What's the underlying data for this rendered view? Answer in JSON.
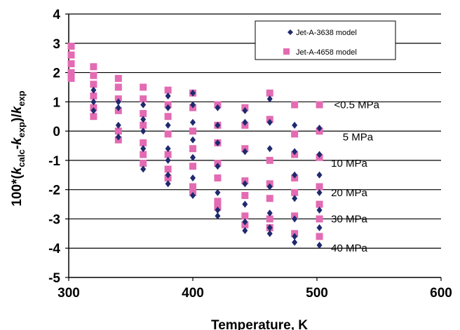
{
  "chart_data": {
    "type": "scatter",
    "xlabel": "Temperature, K",
    "ylabel_parts": {
      "prefix": "100*(",
      "k1": "k",
      "k1_sub": "calc",
      "minus": "-",
      "k2": "k",
      "k2_sub": "exp",
      "close": ")/",
      "k3": "k",
      "k3_sub": "exp"
    },
    "xlim": [
      300,
      600
    ],
    "ylim": [
      -5,
      4
    ],
    "x_ticks": [
      "300",
      "400",
      "500",
      "600"
    ],
    "y_ticks": [
      "4",
      "3",
      "2",
      "1",
      "0",
      "-1",
      "-2",
      "-3",
      "-4",
      "-5"
    ],
    "grid": "horizontal",
    "legend_position": "top-right",
    "series": [
      {
        "name": "Jet-A-3638 model",
        "marker": "diamond",
        "color": "#1f2a6e",
        "points": [
          [
            320,
            1.4
          ],
          [
            320,
            1.0
          ],
          [
            320,
            0.7
          ],
          [
            340,
            1.0
          ],
          [
            340,
            0.8
          ],
          [
            340,
            0.2
          ],
          [
            340,
            -0.2
          ],
          [
            360,
            0.9
          ],
          [
            360,
            0.4
          ],
          [
            360,
            0.0
          ],
          [
            360,
            -0.6
          ],
          [
            360,
            -1.3
          ],
          [
            380,
            1.2
          ],
          [
            380,
            0.8
          ],
          [
            380,
            0.2
          ],
          [
            380,
            -0.6
          ],
          [
            380,
            -1.0
          ],
          [
            380,
            -1.5
          ],
          [
            380,
            -1.8
          ],
          [
            400,
            1.3
          ],
          [
            400,
            0.9
          ],
          [
            400,
            0.3
          ],
          [
            400,
            -0.3
          ],
          [
            400,
            -0.9
          ],
          [
            400,
            -1.6
          ],
          [
            400,
            -2.2
          ],
          [
            420,
            0.8
          ],
          [
            420,
            0.2
          ],
          [
            420,
            -0.4
          ],
          [
            420,
            -1.2
          ],
          [
            420,
            -2.1
          ],
          [
            420,
            -2.7
          ],
          [
            420,
            -2.9
          ],
          [
            442,
            0.7
          ],
          [
            442,
            0.3
          ],
          [
            442,
            -0.7
          ],
          [
            442,
            -1.8
          ],
          [
            442,
            -2.5
          ],
          [
            442,
            -3.1
          ],
          [
            442,
            -3.4
          ],
          [
            462,
            1.1
          ],
          [
            462,
            0.3
          ],
          [
            462,
            -0.6
          ],
          [
            462,
            -1.9
          ],
          [
            462,
            -2.8
          ],
          [
            462,
            -3.3
          ],
          [
            462,
            -3.5
          ],
          [
            482,
            0.2
          ],
          [
            482,
            -0.7
          ],
          [
            482,
            -1.5
          ],
          [
            482,
            -2.3
          ],
          [
            482,
            -3.0
          ],
          [
            482,
            -3.6
          ],
          [
            482,
            -3.8
          ],
          [
            502,
            0.1
          ],
          [
            502,
            -0.8
          ],
          [
            502,
            -1.5
          ],
          [
            502,
            -2.1
          ],
          [
            502,
            -2.7
          ],
          [
            502,
            -3.3
          ],
          [
            502,
            -3.9
          ]
        ]
      },
      {
        "name": "Jet-A-4658 model",
        "marker": "square",
        "color": "#e36bb3",
        "points": [
          [
            302,
            2.9
          ],
          [
            302,
            2.6
          ],
          [
            302,
            2.3
          ],
          [
            302,
            2.0
          ],
          [
            302,
            1.8
          ],
          [
            320,
            2.2
          ],
          [
            320,
            1.9
          ],
          [
            320,
            1.6
          ],
          [
            320,
            1.2
          ],
          [
            320,
            0.8
          ],
          [
            320,
            0.5
          ],
          [
            340,
            1.8
          ],
          [
            340,
            1.5
          ],
          [
            340,
            1.1
          ],
          [
            340,
            0.7
          ],
          [
            340,
            0.0
          ],
          [
            340,
            -0.3
          ],
          [
            360,
            1.5
          ],
          [
            360,
            1.1
          ],
          [
            360,
            0.6
          ],
          [
            360,
            0.2
          ],
          [
            360,
            -0.4
          ],
          [
            360,
            -0.8
          ],
          [
            360,
            -1.1
          ],
          [
            380,
            1.4
          ],
          [
            380,
            0.9
          ],
          [
            380,
            0.5
          ],
          [
            380,
            -0.1
          ],
          [
            380,
            -0.8
          ],
          [
            380,
            -1.3
          ],
          [
            380,
            -1.6
          ],
          [
            400,
            1.3
          ],
          [
            400,
            0.8
          ],
          [
            400,
            0.0
          ],
          [
            400,
            -0.6
          ],
          [
            400,
            -1.2
          ],
          [
            400,
            -1.9
          ],
          [
            400,
            -2.1
          ],
          [
            420,
            0.9
          ],
          [
            420,
            0.2
          ],
          [
            420,
            -0.4
          ],
          [
            420,
            -1.1
          ],
          [
            420,
            -1.6
          ],
          [
            420,
            -2.4
          ],
          [
            420,
            -2.6
          ],
          [
            442,
            0.8
          ],
          [
            442,
            0.2
          ],
          [
            442,
            -0.6
          ],
          [
            442,
            -1.7
          ],
          [
            442,
            -2.2
          ],
          [
            442,
            -2.9
          ],
          [
            442,
            -3.2
          ],
          [
            462,
            1.3
          ],
          [
            462,
            0.4
          ],
          [
            462,
            -1.0
          ],
          [
            462,
            -1.8
          ],
          [
            462,
            -2.3
          ],
          [
            462,
            -3.0
          ],
          [
            462,
            -3.3
          ],
          [
            482,
            0.9
          ],
          [
            482,
            -0.1
          ],
          [
            482,
            -0.8
          ],
          [
            482,
            -1.6
          ],
          [
            482,
            -2.1
          ],
          [
            482,
            -2.9
          ],
          [
            482,
            -3.5
          ],
          [
            502,
            0.9
          ],
          [
            502,
            0.0
          ],
          [
            502,
            -0.9
          ],
          [
            502,
            -1.9
          ],
          [
            502,
            -2.5
          ],
          [
            502,
            -3.0
          ],
          [
            502,
            -3.6
          ]
        ]
      }
    ],
    "annotations": [
      {
        "text": "<0.5 MPa",
        "x": 532,
        "y": 0.9
      },
      {
        "text": "5 MPa",
        "x": 533,
        "y": -0.2
      },
      {
        "text": "10 MPa",
        "x": 526,
        "y": -1.1
      },
      {
        "text": "20 MPa",
        "x": 526,
        "y": -2.1
      },
      {
        "text": "30 MPa",
        "x": 526,
        "y": -3.0
      },
      {
        "text": "40 MPa",
        "x": 526,
        "y": -4.0
      }
    ]
  }
}
